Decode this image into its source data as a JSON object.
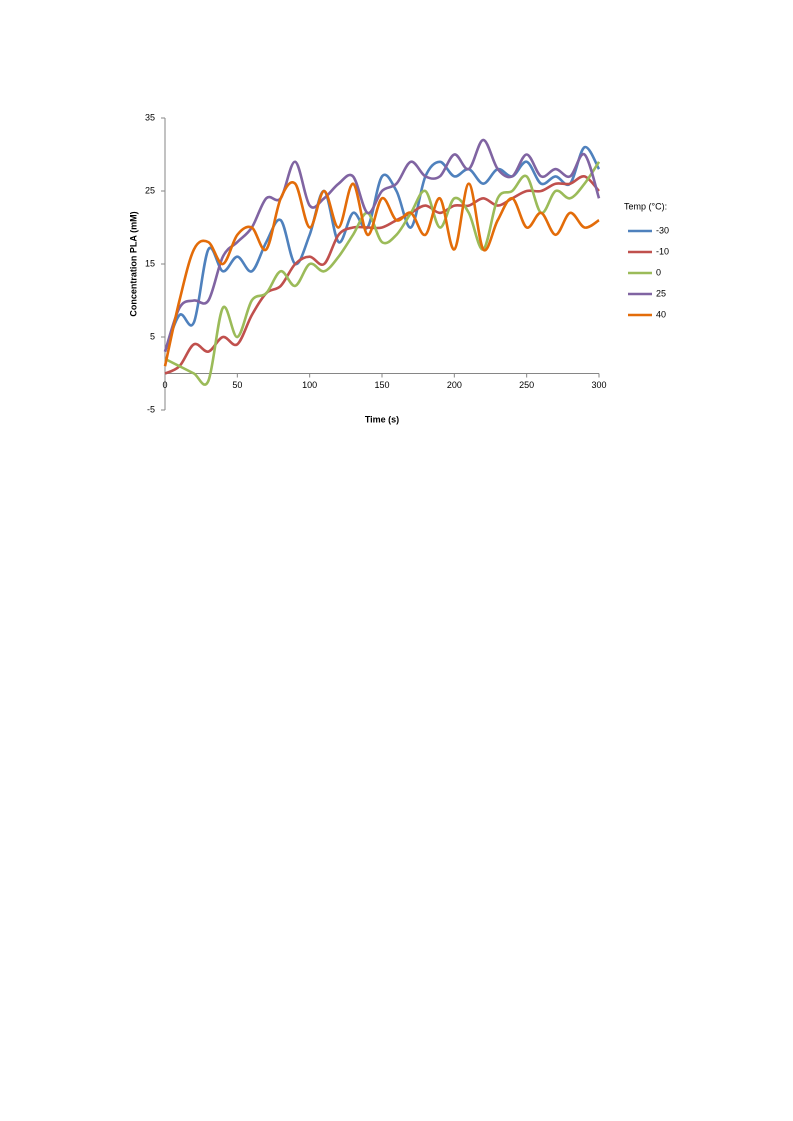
{
  "chart_data": {
    "type": "line",
    "xlabel": "Time (s)",
    "ylabel": "Concentration PLA (mM)",
    "legend_title": "Temp (°C):",
    "legend": "right",
    "x": [
      0,
      10,
      20,
      30,
      40,
      50,
      60,
      70,
      80,
      90,
      100,
      110,
      120,
      130,
      140,
      150,
      160,
      170,
      180,
      190,
      200,
      210,
      220,
      230,
      240,
      250,
      260,
      270,
      280,
      290,
      300
    ],
    "series": [
      {
        "name": "-30",
        "color": "#4f81bd",
        "values": [
          3,
          8,
          7,
          17,
          14,
          16,
          14,
          18,
          21,
          15,
          19,
          25,
          18,
          22,
          20,
          27,
          25,
          20,
          27,
          29,
          27,
          28,
          26,
          28,
          27,
          29,
          26,
          27,
          26,
          31,
          28
        ]
      },
      {
        "name": "-10",
        "color": "#c0504d",
        "values": [
          0,
          1,
          4,
          3,
          5,
          4,
          8,
          11,
          12,
          15,
          16,
          15,
          19,
          20,
          20,
          20,
          21,
          22,
          23,
          22,
          23,
          23,
          24,
          23,
          24,
          25,
          25,
          26,
          26,
          27,
          25
        ]
      },
      {
        "name": "0",
        "color": "#9bbb59",
        "values": [
          2,
          1,
          0,
          -1,
          9,
          5,
          10,
          11,
          14,
          12,
          15,
          14,
          16,
          19,
          22,
          18,
          19,
          22,
          25,
          20,
          24,
          22,
          17,
          24,
          25,
          27,
          22,
          25,
          24,
          26,
          29
        ]
      },
      {
        "name": "25",
        "color": "#8064a2",
        "values": [
          3,
          9,
          10,
          10,
          16,
          18,
          20,
          24,
          24,
          29,
          23,
          24,
          26,
          27,
          22,
          25,
          26,
          29,
          27,
          27,
          30,
          28,
          32,
          28,
          27,
          30,
          27,
          28,
          27,
          30,
          24
        ]
      },
      {
        "name": "40",
        "color": "#e36c09",
        "values": [
          1,
          10,
          17,
          18,
          15,
          19,
          20,
          17,
          24,
          26,
          20,
          25,
          20,
          26,
          19,
          24,
          21,
          22,
          19,
          24,
          17,
          26,
          17,
          21,
          24,
          20,
          22,
          19,
          22,
          20,
          21
        ]
      }
    ],
    "xlim": [
      0,
      300
    ],
    "xticks": [
      0,
      50,
      100,
      150,
      200,
      250,
      300
    ],
    "ylim": [
      -5,
      35
    ],
    "yticks": [
      -5,
      5,
      15,
      25,
      35
    ]
  }
}
